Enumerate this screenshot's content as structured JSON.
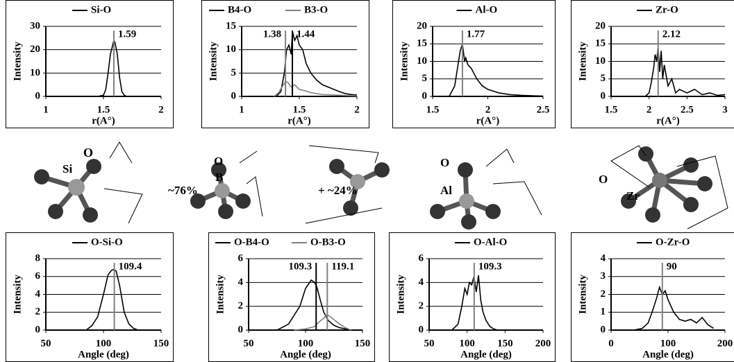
{
  "chart_data": [
    {
      "type": "line",
      "xlabel": "r(A°)",
      "ylabel": "Intensity",
      "xlim": [
        1,
        2
      ],
      "xticks": [
        1,
        1.5,
        2
      ],
      "ylim": [
        0,
        30
      ],
      "yticks": [
        0,
        10,
        20,
        30
      ],
      "grid": true,
      "legend": "top",
      "series": [
        {
          "name": "Si-O",
          "color": "#000000",
          "x": [
            1.45,
            1.5,
            1.52,
            1.54,
            1.56,
            1.58,
            1.59,
            1.6,
            1.62,
            1.64,
            1.66,
            1.68,
            1.7
          ],
          "values": [
            0,
            0.5,
            3,
            10,
            18,
            22,
            24,
            23,
            18,
            8,
            2,
            0.5,
            0
          ]
        }
      ],
      "annotations": [
        {
          "x": 1.59,
          "color": "#808080"
        }
      ]
    },
    {
      "type": "line",
      "xlabel": "r(A°)",
      "ylabel": "Intensity",
      "xlim": [
        1,
        2
      ],
      "xticks": [
        1,
        1.5,
        2
      ],
      "ylim": [
        0,
        15
      ],
      "yticks": [
        0,
        5,
        10,
        15
      ],
      "grid": true,
      "legend": "top",
      "series": [
        {
          "name": "B4-O",
          "color": "#000000",
          "x": [
            1.3,
            1.34,
            1.37,
            1.39,
            1.41,
            1.43,
            1.44,
            1.46,
            1.48,
            1.5,
            1.53,
            1.56,
            1.6,
            1.65,
            1.7,
            1.75,
            1.8,
            1.85,
            1.9,
            1.95,
            2
          ],
          "values": [
            0,
            1,
            5,
            10,
            11,
            9,
            14,
            12,
            13,
            11,
            10,
            7,
            5,
            3.5,
            2.5,
            2,
            1.5,
            1,
            0.6,
            0.4,
            0.3
          ]
        },
        {
          "name": "B3-O",
          "color": "#808080",
          "x": [
            1.28,
            1.32,
            1.35,
            1.38,
            1.4,
            1.43,
            1.46,
            1.5,
            1.55,
            1.6,
            1.7,
            1.8,
            1.9,
            2
          ],
          "values": [
            0,
            0.8,
            2,
            3.2,
            3,
            2,
            2.5,
            1.5,
            1.2,
            0.8,
            0.4,
            0.3,
            0.2,
            0.1
          ]
        }
      ],
      "annotations": [
        {
          "x": 1.38,
          "color": "#808080"
        },
        {
          "x": 1.44,
          "color": "#000000"
        }
      ]
    },
    {
      "type": "line",
      "xlabel": "r(A°)",
      "ylabel": "Intensity",
      "xlim": [
        1.5,
        2.5
      ],
      "xticks": [
        1.5,
        2,
        2.5
      ],
      "ylim": [
        0,
        20
      ],
      "yticks": [
        0,
        5,
        10,
        15,
        20
      ],
      "grid": true,
      "legend": "top",
      "series": [
        {
          "name": "Al-O",
          "color": "#000000",
          "x": [
            1.65,
            1.7,
            1.73,
            1.75,
            1.77,
            1.79,
            1.8,
            1.82,
            1.85,
            1.9,
            1.95,
            2,
            2.05,
            2.1,
            2.2,
            2.3,
            2.4,
            2.5
          ],
          "values": [
            0,
            3,
            9,
            13,
            15,
            10,
            11,
            9,
            8,
            5,
            3,
            2,
            1.5,
            1,
            0.5,
            0.3,
            0.2,
            0.1
          ]
        }
      ],
      "annotations": [
        {
          "x": 1.77,
          "color": "#808080"
        }
      ]
    },
    {
      "type": "line",
      "xlabel": "r(A°)",
      "ylabel": "Intensity",
      "xlim": [
        1.5,
        3
      ],
      "xticks": [
        1.5,
        2,
        2.5,
        3
      ],
      "ylim": [
        0,
        20
      ],
      "yticks": [
        0,
        5,
        10,
        15,
        20
      ],
      "grid": true,
      "legend": "top",
      "series": [
        {
          "name": "Zr-O",
          "color": "#000000",
          "x": [
            1.95,
            2,
            2.03,
            2.06,
            2.08,
            2.1,
            2.12,
            2.14,
            2.16,
            2.18,
            2.2,
            2.25,
            2.3,
            2.35,
            2.4,
            2.5,
            2.6,
            2.7,
            2.8,
            2.9,
            3
          ],
          "values": [
            0,
            1,
            4,
            8,
            12,
            10,
            14,
            7,
            13,
            5,
            9,
            3,
            5,
            1,
            2,
            1,
            2,
            0.5,
            1,
            0.3,
            0.5
          ]
        }
      ],
      "annotations": [
        {
          "x": 2.12,
          "color": "#808080"
        }
      ]
    },
    {
      "type": "line",
      "xlabel": "Angle (deg)",
      "ylabel": "Intensity",
      "xlim": [
        50,
        150
      ],
      "xticks": [
        50,
        100,
        150
      ],
      "ylim": [
        0,
        8
      ],
      "yticks": [
        0,
        2,
        4,
        6,
        8
      ],
      "grid": true,
      "legend": "top",
      "series": [
        {
          "name": "O-Si-O",
          "color": "#000000",
          "x": [
            85,
            90,
            95,
            100,
            104,
            107,
            109,
            111,
            114,
            118,
            122,
            126,
            130
          ],
          "values": [
            0,
            0.5,
            1.5,
            4,
            6.2,
            6.7,
            6.8,
            6.6,
            5,
            2,
            0.7,
            0.2,
            0
          ]
        }
      ],
      "annotations": [
        {
          "x": 109.4,
          "color": "#808080"
        }
      ]
    },
    {
      "type": "line",
      "xlabel": "Angle (deg)",
      "ylabel": "Intensity",
      "xlim": [
        50,
        150
      ],
      "xticks": [
        50,
        100,
        150
      ],
      "ylim": [
        0,
        6
      ],
      "yticks": [
        0,
        2,
        4,
        6
      ],
      "grid": true,
      "legend": "top",
      "series": [
        {
          "name": "O-B4-O",
          "color": "#000000",
          "x": [
            75,
            85,
            95,
            100,
            105,
            108,
            110,
            113,
            116,
            120,
            125,
            130,
            135,
            140
          ],
          "values": [
            0,
            0.5,
            2,
            3.5,
            4.2,
            4,
            3.6,
            2.5,
            1.5,
            0.8,
            0.4,
            0.2,
            0.1,
            0
          ]
        },
        {
          "name": "O-B3-O",
          "color": "#808080",
          "x": [
            90,
            100,
            108,
            112,
            116,
            119,
            122,
            126,
            130,
            135,
            140
          ],
          "values": [
            0,
            0.1,
            0.3,
            0.7,
            1,
            1.3,
            1.1,
            0.8,
            0.5,
            0.2,
            0
          ]
        }
      ],
      "annotations": [
        {
          "x": 109.3,
          "color": "#000000"
        },
        {
          "x": 119.1,
          "color": "#808080"
        }
      ]
    },
    {
      "type": "line",
      "xlabel": "Angle (deg)",
      "ylabel": "Intensity",
      "xlim": [
        50,
        200
      ],
      "xticks": [
        50,
        100,
        150,
        200
      ],
      "ylim": [
        0,
        6
      ],
      "yticks": [
        0,
        2,
        4,
        6
      ],
      "grid": true,
      "legend": "top",
      "series": [
        {
          "name": "O-Al-O",
          "color": "#000000",
          "x": [
            80,
            88,
            93,
            97,
            100,
            103,
            106,
            109,
            112,
            115,
            118,
            121,
            125,
            130,
            135,
            140
          ],
          "values": [
            0,
            0.5,
            2,
            3.5,
            3,
            4,
            3.8,
            4.5,
            3.2,
            4.6,
            2.5,
            1.5,
            0.8,
            0.3,
            0.1,
            0
          ]
        }
      ],
      "annotations": [
        {
          "x": 109.3,
          "color": "#808080"
        }
      ]
    },
    {
      "type": "line",
      "xlabel": "Angle (deg)",
      "ylabel": "Intensity",
      "xlim": [
        0,
        200
      ],
      "xticks": [
        0,
        100,
        200
      ],
      "ylim": [
        0,
        4
      ],
      "yticks": [
        0,
        1,
        2,
        3,
        4
      ],
      "grid": true,
      "legend": "top",
      "series": [
        {
          "name": "O-Zr-O",
          "color": "#000000",
          "x": [
            0,
            20,
            40,
            55,
            65,
            72,
            80,
            85,
            90,
            95,
            100,
            110,
            120,
            130,
            140,
            150,
            160,
            170,
            180
          ],
          "values": [
            0,
            0,
            0,
            0.1,
            0.4,
            1,
            1.8,
            2.4,
            2,
            2.2,
            1.7,
            1,
            0.6,
            0.5,
            0.6,
            0.4,
            0.7,
            0.3,
            0.1
          ]
        }
      ],
      "annotations": [
        {
          "x": 90,
          "color": "#808080"
        }
      ]
    }
  ],
  "molecule_labels": [
    "O",
    "Si",
    "O",
    "B",
    "~76%",
    "+ ~24%",
    "O",
    "Al",
    "O",
    "Zr"
  ]
}
